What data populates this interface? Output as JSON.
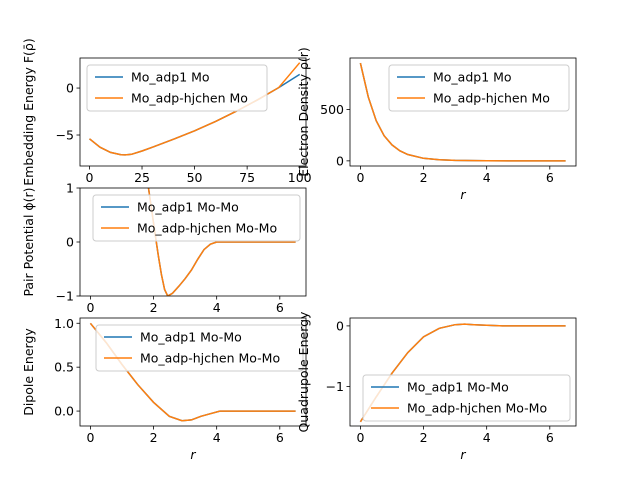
{
  "colors": {
    "series_a": "#1f77b4",
    "series_b": "#ff7f0e",
    "legend_border": "#cccccc"
  },
  "chart_data": [
    {
      "id": "embedding",
      "type": "line",
      "xlabel": "",
      "ylabel": "Embedding Energy F(ρ̄)",
      "xlim": [
        -4.5,
        103
      ],
      "ylim": [
        -8.3,
        3.2
      ],
      "xticks": [
        0,
        25,
        50,
        75,
        100
      ],
      "yticks": [
        -5,
        0
      ],
      "grid": false,
      "legend": "upper center",
      "series": [
        {
          "name": "Mo_adp1 Mo",
          "x": [
            0,
            5,
            10,
            15,
            17,
            20,
            25,
            30,
            40,
            50,
            60,
            70,
            80,
            90,
            100
          ],
          "y": [
            -5.4,
            -6.3,
            -6.85,
            -7.1,
            -7.12,
            -7.05,
            -6.7,
            -6.3,
            -5.45,
            -4.55,
            -3.55,
            -2.45,
            -1.25,
            0.05,
            1.45
          ]
        },
        {
          "name": "Mo_adp-hjchen Mo",
          "x": [
            0,
            5,
            10,
            15,
            17,
            20,
            25,
            30,
            40,
            50,
            60,
            70,
            80,
            90,
            100
          ],
          "y": [
            -5.4,
            -6.3,
            -6.85,
            -7.1,
            -7.12,
            -7.05,
            -6.7,
            -6.3,
            -5.45,
            -4.55,
            -3.55,
            -2.45,
            -1.25,
            0.05,
            2.7
          ]
        }
      ]
    },
    {
      "id": "density",
      "type": "line",
      "xlabel": "r",
      "ylabel": "Electron Density ρ(r)",
      "xlim": [
        -0.33,
        6.83
      ],
      "ylim": [
        -50,
        1000
      ],
      "xticks": [
        0,
        2,
        4,
        6
      ],
      "yticks": [
        0,
        500
      ],
      "grid": false,
      "legend": "upper right",
      "series": [
        {
          "name": "Mo_adp1 Mo",
          "x": [
            0,
            0.25,
            0.5,
            0.75,
            1,
            1.25,
            1.5,
            2,
            2.5,
            3,
            4,
            5,
            6.5
          ],
          "y": [
            950,
            620,
            390,
            245,
            155,
            98,
            62,
            25,
            10,
            4,
            1,
            0,
            0
          ]
        },
        {
          "name": "Mo_adp-hjchen Mo",
          "x": [
            0,
            0.25,
            0.5,
            0.75,
            1,
            1.25,
            1.5,
            2,
            2.5,
            3,
            4,
            5,
            6.5
          ],
          "y": [
            950,
            620,
            390,
            245,
            155,
            98,
            62,
            25,
            10,
            4,
            1,
            0,
            0
          ]
        }
      ]
    },
    {
      "id": "pair",
      "type": "line",
      "xlabel": "",
      "ylabel": "Pair Potential ϕ(r)",
      "xlim": [
        -0.33,
        6.83
      ],
      "ylim": [
        -1,
        1
      ],
      "xticks": [
        0,
        2,
        4,
        6
      ],
      "yticks": [
        -1,
        0,
        1
      ],
      "grid": false,
      "legend": "upper center",
      "series": [
        {
          "name": "Mo_adp1 Mo-Mo",
          "x": [
            1.84,
            1.95,
            2.05,
            2.15,
            2.25,
            2.35,
            2.45,
            2.6,
            2.8,
            3.0,
            3.2,
            3.4,
            3.6,
            3.8,
            4.0,
            4.3,
            5.0,
            6.5
          ],
          "y": [
            1.0,
            0.55,
            0.15,
            -0.25,
            -0.6,
            -0.88,
            -1.0,
            -0.95,
            -0.82,
            -0.68,
            -0.52,
            -0.32,
            -0.14,
            -0.04,
            0.0,
            0.0,
            0.0,
            0.0
          ]
        },
        {
          "name": "Mo_adp-hjchen Mo-Mo",
          "x": [
            1.84,
            1.95,
            2.05,
            2.15,
            2.25,
            2.35,
            2.45,
            2.6,
            2.8,
            3.0,
            3.2,
            3.4,
            3.6,
            3.8,
            4.0,
            4.3,
            5.0,
            6.5
          ],
          "y": [
            1.0,
            0.55,
            0.15,
            -0.25,
            -0.6,
            -0.88,
            -1.0,
            -0.95,
            -0.82,
            -0.68,
            -0.52,
            -0.32,
            -0.14,
            -0.04,
            0.0,
            0.0,
            0.0,
            0.0
          ]
        }
      ]
    },
    {
      "id": "dipole",
      "type": "line",
      "xlabel": "r",
      "ylabel": "Dipole Energy",
      "xlim": [
        -0.33,
        6.83
      ],
      "ylim": [
        -0.17,
        1.06
      ],
      "xticks": [
        0,
        2,
        4,
        6
      ],
      "yticks": [
        0.0,
        0.5,
        1.0
      ],
      "ytick_labels": [
        "0.0",
        "0.5",
        "1.0"
      ],
      "grid": false,
      "legend": "upper center",
      "series": [
        {
          "name": "Mo_adp1 Mo-Mo",
          "x": [
            0,
            0.5,
            1.0,
            1.5,
            2.0,
            2.5,
            2.9,
            3.2,
            3.5,
            3.8,
            4.1,
            4.5,
            5.0,
            6.5
          ],
          "y": [
            1.0,
            0.78,
            0.53,
            0.3,
            0.1,
            -0.06,
            -0.11,
            -0.1,
            -0.06,
            -0.03,
            0.0,
            0.0,
            0.0,
            0.0
          ]
        },
        {
          "name": "Mo_adp-hjchen Mo-Mo",
          "x": [
            0,
            0.5,
            1.0,
            1.5,
            2.0,
            2.5,
            2.9,
            3.2,
            3.5,
            3.8,
            4.1,
            4.5,
            5.0,
            6.5
          ],
          "y": [
            1.0,
            0.78,
            0.53,
            0.3,
            0.1,
            -0.06,
            -0.11,
            -0.1,
            -0.06,
            -0.03,
            0.0,
            0.0,
            0.0,
            0.0
          ]
        }
      ]
    },
    {
      "id": "quadrupole",
      "type": "line",
      "xlabel": "r",
      "ylabel": "Quadrupole Energy",
      "xlim": [
        -0.33,
        6.83
      ],
      "ylim": [
        -1.65,
        0.13
      ],
      "xticks": [
        0,
        2,
        4,
        6
      ],
      "yticks": [
        -1,
        0
      ],
      "grid": false,
      "legend": "lower right",
      "series": [
        {
          "name": "Mo_adp1 Mo-Mo",
          "x": [
            0,
            0.5,
            1.0,
            1.5,
            2.0,
            2.5,
            3.0,
            3.3,
            3.6,
            4.0,
            4.5,
            5.0,
            6.5
          ],
          "y": [
            -1.58,
            -1.17,
            -0.78,
            -0.44,
            -0.18,
            -0.04,
            0.02,
            0.03,
            0.02,
            0.01,
            0.0,
            0.0,
            0.0
          ]
        },
        {
          "name": "Mo_adp-hjchen Mo-Mo",
          "x": [
            0,
            0.5,
            1.0,
            1.5,
            2.0,
            2.5,
            3.0,
            3.3,
            3.6,
            4.0,
            4.5,
            5.0,
            6.5
          ],
          "y": [
            -1.58,
            -1.17,
            -0.78,
            -0.44,
            -0.18,
            -0.04,
            0.02,
            0.03,
            0.02,
            0.01,
            0.0,
            0.0,
            0.0
          ]
        }
      ]
    }
  ]
}
